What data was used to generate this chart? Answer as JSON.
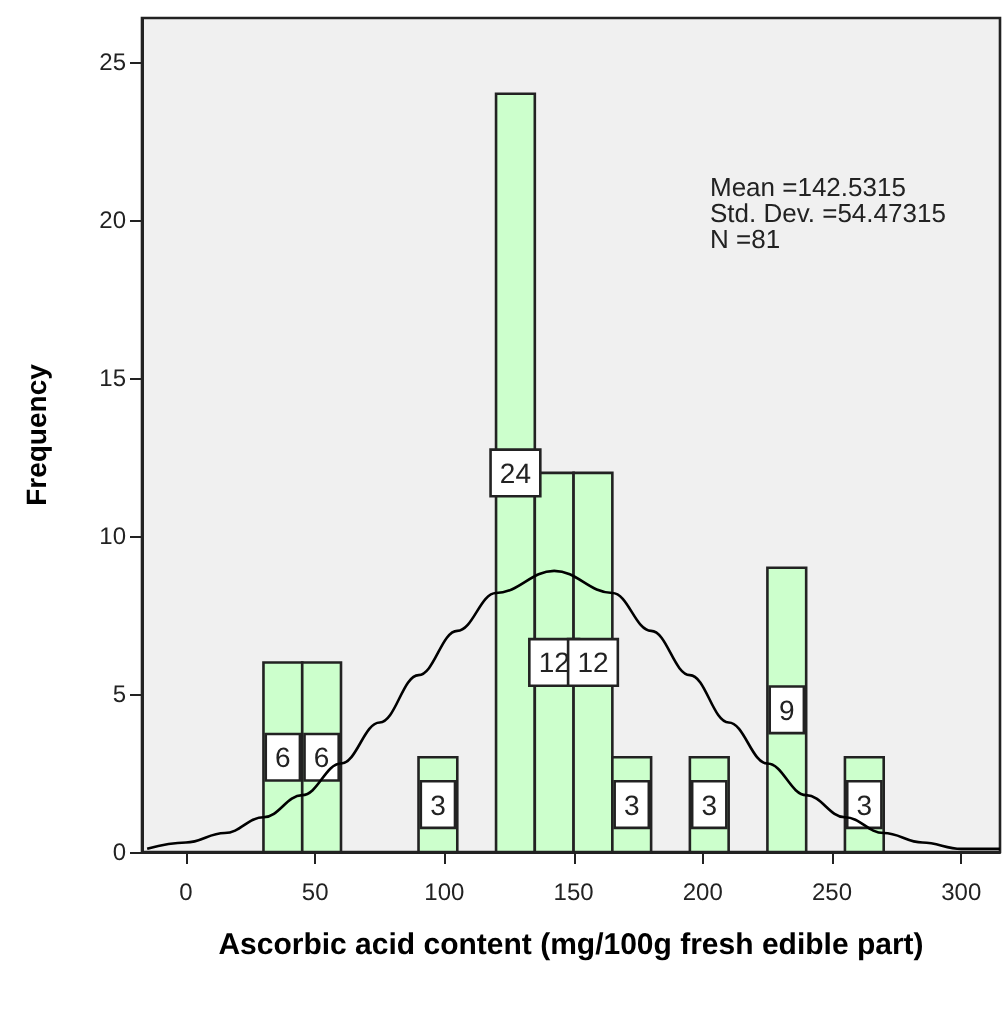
{
  "chart_data": {
    "type": "histogram",
    "xlabel": "Ascorbic acid content (mg/100g fresh edible part)",
    "ylabel": "Frequency",
    "bins": [
      30,
      45,
      60,
      75,
      90,
      105,
      120,
      135,
      150,
      165,
      180,
      195,
      210,
      225,
      240,
      255,
      270
    ],
    "values": [
      6,
      6,
      0,
      0,
      3,
      0,
      24,
      12,
      12,
      3,
      0,
      3,
      0,
      9,
      0,
      3
    ],
    "value_labels": [
      "6",
      "6",
      null,
      null,
      "3",
      null,
      "24",
      "12",
      "12",
      "3",
      null,
      "3",
      null,
      "9",
      null,
      "3"
    ],
    "color": "#ccffcc",
    "series": [
      {
        "type": "line",
        "color": "#000000",
        "x": [
          -15,
          0,
          15,
          30,
          45,
          60,
          75,
          90,
          105,
          120,
          142.5,
          165,
          180,
          195,
          210,
          225,
          240,
          255,
          270,
          285,
          300,
          315
        ],
        "values": [
          0.1,
          0.3,
          0.6,
          1.1,
          1.8,
          2.8,
          4.1,
          5.6,
          7.0,
          8.2,
          8.9,
          8.2,
          7.0,
          5.6,
          4.1,
          2.8,
          1.8,
          1.1,
          0.6,
          0.3,
          0.1,
          0.1
        ]
      }
    ],
    "annotations": [
      "Mean =142.5315",
      "Std. Dev. =54.47315",
      "N =81"
    ],
    "xlim": [
      -17,
      315
    ],
    "xticks": [
      0,
      50,
      100,
      150,
      200,
      250,
      300
    ],
    "ylim": [
      0,
      26.4
    ],
    "yticks": [
      0,
      5,
      10,
      15,
      20,
      25
    ],
    "grid": false,
    "marker": "none",
    "line_style": "solid"
  }
}
